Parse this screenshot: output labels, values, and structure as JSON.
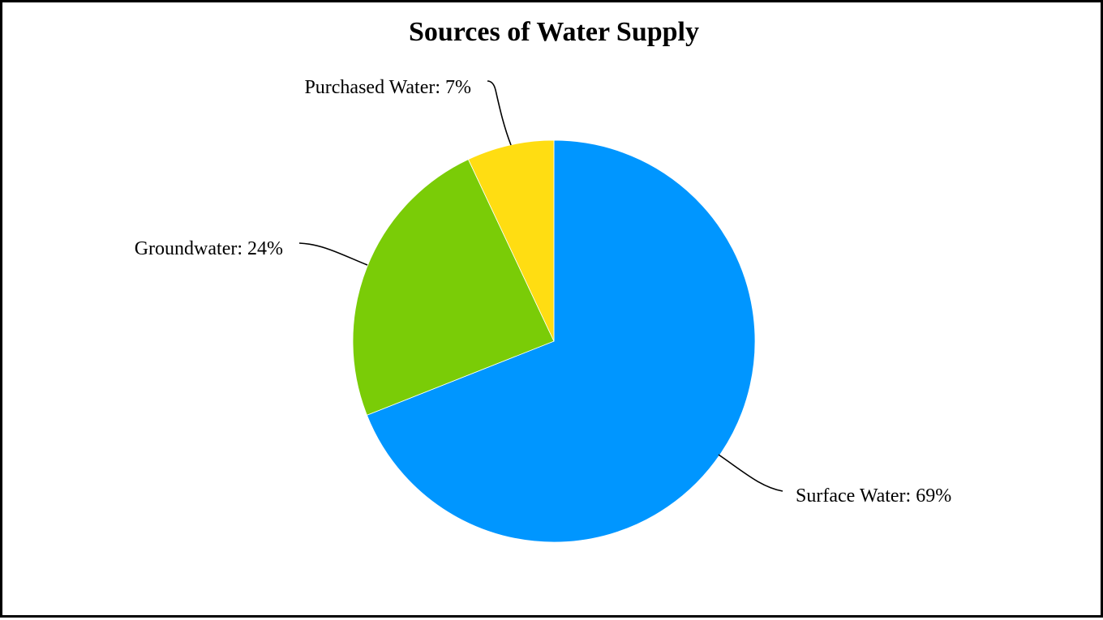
{
  "chart_data": {
    "type": "pie",
    "title": "Sources of Water Supply",
    "start": "12 o'clock, clockwise",
    "slices": [
      {
        "label": "Surface Water",
        "value": 69,
        "display": "Surface Water: 69%",
        "color": "#0096FF"
      },
      {
        "label": "Groundwater",
        "value": 24,
        "display": "Groundwater: 24%",
        "color": "#7ACC07"
      },
      {
        "label": "Purchased Water",
        "value": 7,
        "display": "Purchased Water: 7%",
        "color": "#FFDD12"
      }
    ],
    "legend": "none",
    "data_labels": "outside with leader lines"
  }
}
